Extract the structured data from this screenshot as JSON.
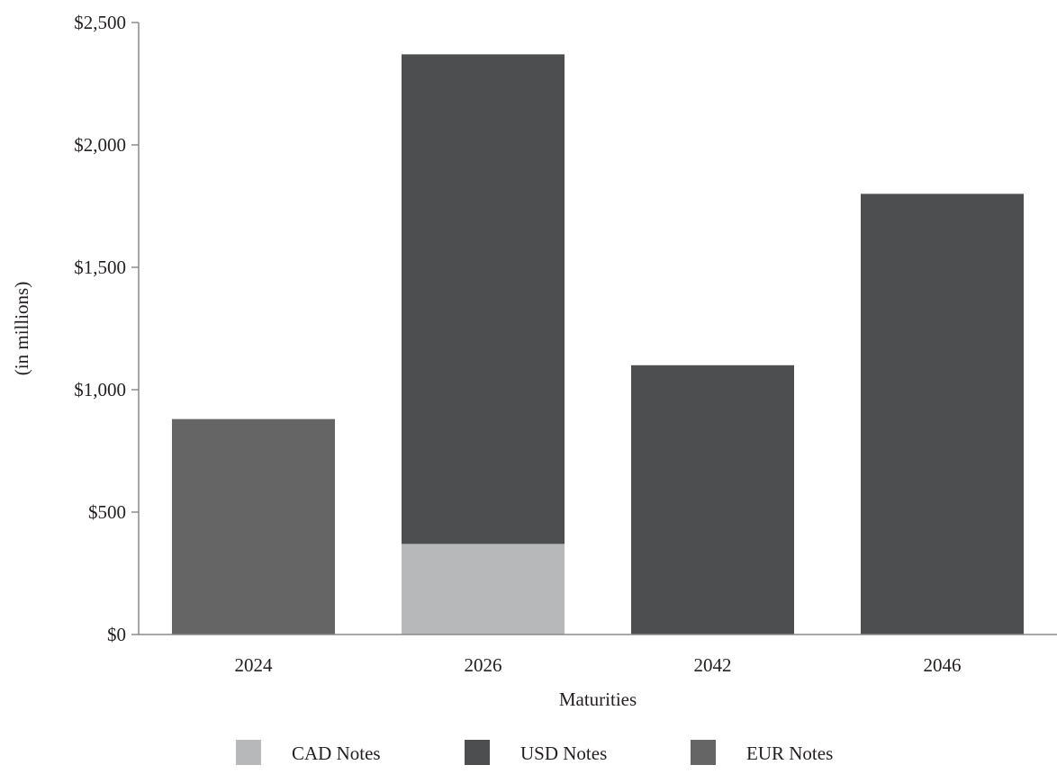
{
  "chart_data": {
    "type": "bar",
    "stacked": true,
    "title": "",
    "xlabel": "Maturities",
    "ylabel": "(in millions)",
    "categories": [
      "2024",
      "2026",
      "2042",
      "2046"
    ],
    "ylim": [
      0,
      2500
    ],
    "yticks": [
      0,
      500,
      1000,
      1500,
      2000,
      2500
    ],
    "ytick_labels": [
      "$0",
      "$500",
      "$1,000",
      "$1,500",
      "$2,000",
      "$2,500"
    ],
    "grid": false,
    "legend_position": "bottom",
    "series": [
      {
        "name": "CAD Notes",
        "color": "#b7b8ba",
        "values": [
          0,
          370,
          0,
          0
        ]
      },
      {
        "name": "USD Notes",
        "color": "#4d4e50",
        "values": [
          0,
          2000,
          1100,
          1800
        ]
      },
      {
        "name": "EUR Notes",
        "color": "#656566",
        "values": [
          880,
          0,
          0,
          0
        ]
      }
    ]
  }
}
